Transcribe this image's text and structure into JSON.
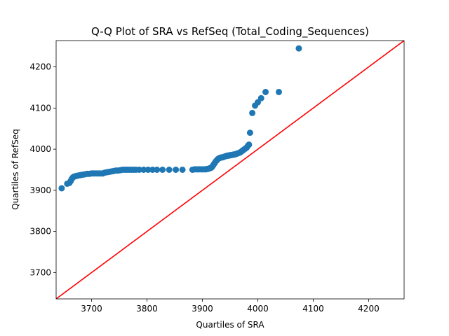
{
  "chart_data": {
    "type": "scatter",
    "title": "Q-Q Plot of SRA vs RefSeq (Total_Coding_Sequences)",
    "xlabel": "Quartiles of SRA",
    "ylabel": "Quartiles of RefSeq",
    "xlim": [
      3636,
      4264
    ],
    "ylim": [
      3636,
      4264
    ],
    "xticks": [
      3700,
      3800,
      3900,
      4000,
      4100,
      4200
    ],
    "yticks": [
      3700,
      3800,
      3900,
      4000,
      4100,
      4200
    ],
    "grid": false,
    "reference_line": {
      "color": "#ff0000",
      "x": [
        3636,
        4264
      ],
      "y": [
        3636,
        4264
      ]
    },
    "marker_color": "#1f77b4",
    "x": [
      3646,
      3656,
      3660,
      3662,
      3664,
      3666,
      3668,
      3670,
      3673,
      3676,
      3680,
      3684,
      3688,
      3692,
      3696,
      3700,
      3704,
      3708,
      3712,
      3716,
      3720,
      3724,
      3728,
      3732,
      3736,
      3740,
      3744,
      3748,
      3752,
      3756,
      3760,
      3764,
      3768,
      3772,
      3776,
      3780,
      3786,
      3794,
      3802,
      3810,
      3818,
      3828,
      3840,
      3852,
      3864,
      3882,
      3886,
      3890,
      3894,
      3898,
      3902,
      3906,
      3908,
      3910,
      3912,
      3914,
      3916,
      3918,
      3920,
      3922,
      3924,
      3926,
      3928,
      3930,
      3932,
      3934,
      3936,
      3938,
      3940,
      3942,
      3944,
      3946,
      3948,
      3950,
      3952,
      3954,
      3956,
      3958,
      3960,
      3962,
      3964,
      3966,
      3968,
      3970,
      3972,
      3974,
      3976,
      3978,
      3980,
      3982,
      3984,
      3986,
      3990,
      3995,
      4000,
      4006,
      4014,
      4038,
      4074
    ],
    "y": [
      3905,
      3916,
      3918,
      3922,
      3927,
      3931,
      3933,
      3934,
      3935,
      3936,
      3937,
      3938,
      3939,
      3940,
      3940,
      3941,
      3941,
      3941,
      3941,
      3941,
      3941,
      3943,
      3944,
      3945,
      3946,
      3947,
      3948,
      3948,
      3949,
      3950,
      3950,
      3950,
      3950,
      3950,
      3950,
      3950,
      3950,
      3950,
      3950,
      3950,
      3950,
      3950,
      3950,
      3950,
      3950,
      3950,
      3951,
      3951,
      3951,
      3951,
      3951,
      3951,
      3952,
      3952,
      3953,
      3954,
      3955,
      3958,
      3962,
      3966,
      3970,
      3973,
      3976,
      3978,
      3979,
      3980,
      3980,
      3981,
      3982,
      3983,
      3984,
      3984,
      3985,
      3985,
      3986,
      3986,
      3987,
      3987,
      3988,
      3989,
      3990,
      3991,
      3992,
      3994,
      3996,
      3998,
      4000,
      4002,
      4004,
      4008,
      4011,
      4040,
      4088,
      4106,
      4114,
      4124,
      4139,
      4139,
      4245
    ]
  }
}
